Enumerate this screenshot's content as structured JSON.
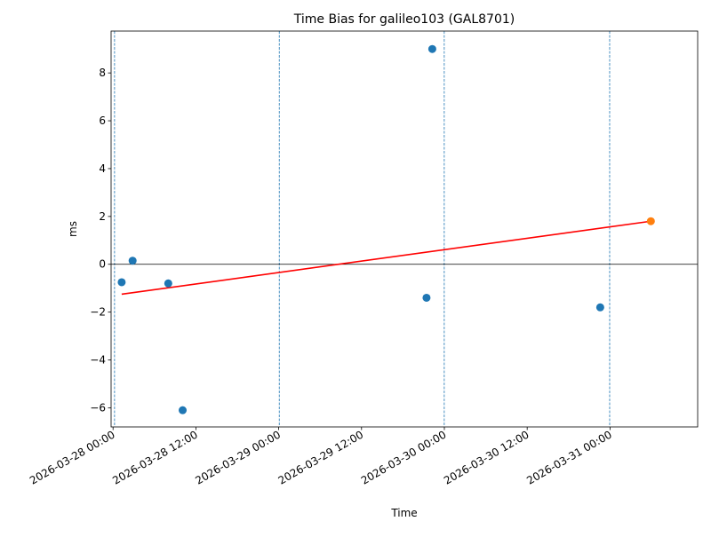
{
  "chart_data": {
    "type": "scatter",
    "title": "Time Bias for galileo103 (GAL8701)",
    "xlabel": "Time",
    "ylabel": "ms",
    "xlim": [
      "2026-03-27T23:43",
      "2026-03-31T12:42"
    ],
    "ylim": [
      -6.8,
      9.75
    ],
    "x_ticks": [
      "2026-03-28 00:00",
      "2026-03-28 12:00",
      "2026-03-29 00:00",
      "2026-03-29 12:00",
      "2026-03-30 00:00",
      "2026-03-30 12:00",
      "2026-03-31 00:00"
    ],
    "y_ticks": [
      -6,
      -4,
      -2,
      0,
      2,
      4,
      6,
      8
    ],
    "vlines": [
      "2026-03-28T00:13",
      "2026-03-29T00:05",
      "2026-03-29T23:59",
      "2026-03-30T23:57"
    ],
    "series": [
      {
        "color": "#1f77b4",
        "points": [
          {
            "x": "2026-03-28T01:15",
            "y": -0.75
          },
          {
            "x": "2026-03-28T02:50",
            "y": 0.15
          },
          {
            "x": "2026-03-28T08:00",
            "y": -0.8
          },
          {
            "x": "2026-03-28T10:05",
            "y": -6.1
          },
          {
            "x": "2026-03-29T21:25",
            "y": -1.4
          },
          {
            "x": "2026-03-29T22:15",
            "y": 9.0
          },
          {
            "x": "2026-03-30T22:35",
            "y": -1.8
          }
        ]
      },
      {
        "color": "#ff7f0e",
        "points": [
          {
            "x": "2026-03-31T05:55",
            "y": 1.8
          }
        ]
      }
    ],
    "trend_line": {
      "color": "#ff0000",
      "points": [
        {
          "x": "2026-03-28T01:15",
          "y": -1.25
        },
        {
          "x": "2026-03-31T05:55",
          "y": 1.8
        }
      ]
    },
    "zero_line": {
      "y": 0,
      "color": "#000000"
    },
    "vline_color": "#1f77b4"
  }
}
